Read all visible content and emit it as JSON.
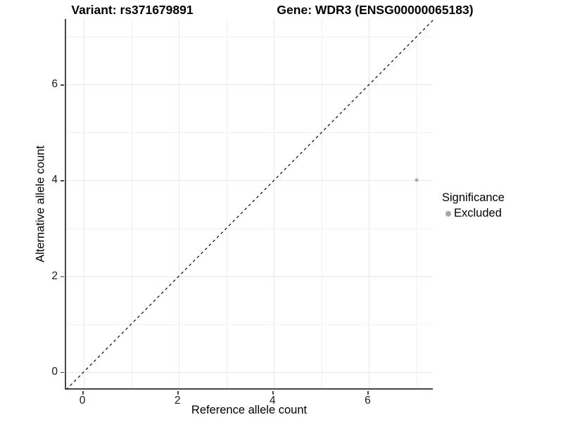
{
  "titles": {
    "variant": "Variant: rs371679891",
    "gene": "Gene: WDR3 (ENSG00000065183)"
  },
  "chart_data": {
    "type": "scatter",
    "title_left": "Variant: rs371679891",
    "title_right": "Gene: WDR3 (ENSG00000065183)",
    "xlabel": "Reference allele count",
    "ylabel": "Alternative allele count",
    "xlim": [
      -0.37,
      7.37
    ],
    "ylim": [
      -0.37,
      7.37
    ],
    "x_ticks": [
      0,
      2,
      4,
      6
    ],
    "y_ticks": [
      0,
      2,
      4,
      6
    ],
    "minor_grid": [
      1,
      3,
      5,
      7
    ],
    "grid": true,
    "points": [
      {
        "x": 7,
        "y": 4,
        "series": "Excluded",
        "color": "#ababab"
      }
    ],
    "reference_line": {
      "slope": 1,
      "intercept": 0,
      "style": "dashed",
      "color": "#1a1a1a"
    },
    "legend": {
      "title": "Significance",
      "position": "right",
      "entries": [
        {
          "label": "Excluded",
          "color": "#a6a6a6"
        }
      ]
    }
  },
  "colors": {
    "background": "#ffffff",
    "axis_line": "#464646",
    "grid_major": "#e8e8e8",
    "grid_minor": "#f1f1f1",
    "text": "#000000"
  }
}
